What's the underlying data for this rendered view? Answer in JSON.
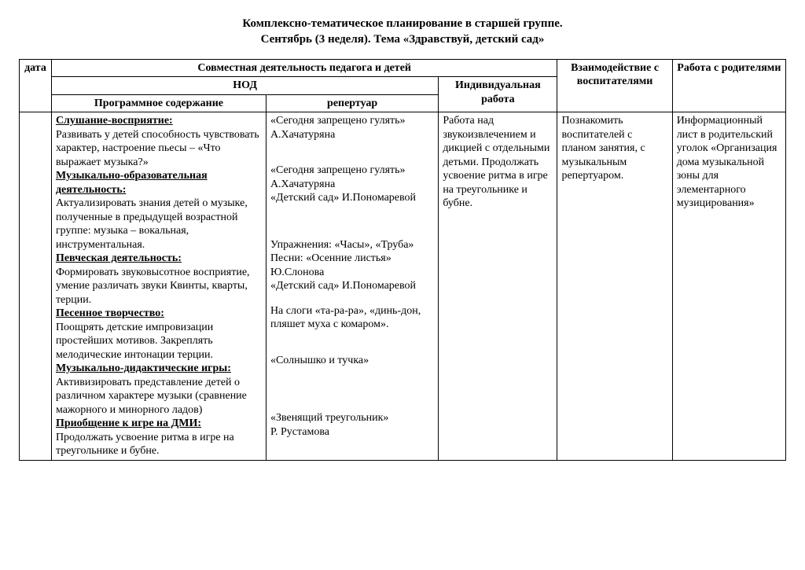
{
  "title": {
    "line1": "Комплексно-тематическое планирование в старшей группе.",
    "line2": "Сентябрь (3 неделя). Тема «Здравствуй, детский сад»"
  },
  "headers": {
    "date": "дата",
    "joint": "Совместная деятельность педагога и детей",
    "nod": "НОД",
    "indiv": "Индивидуальная работа",
    "educators": "Взаимодействие с воспитателями",
    "parents": "Работа с родителями",
    "programContent": "Программное содержание",
    "repertoire": "репертуар"
  },
  "sections": {
    "listening": {
      "label": "Слушание-восприятие:",
      "text": "Развивать у детей способность чувствовать характер, настроение пьесы – «Что выражает музыка?»"
    },
    "musEdu": {
      "label": "Музыкально-образовательная деятельность:",
      "text": "Актуализировать знания детей о музыке, полученные в предыдущей возрастной группе: музыка – вокальная, инструментальная."
    },
    "singing": {
      "label": "Певческая деятельность:",
      "text": "Формировать звуковысотное восприятие, умение различать звуки Квинты, кварты, терции."
    },
    "songCr": {
      "label": "Песенное творчество:",
      "text": "Поощрять детские импровизации простейших мотивов. Закреплять мелодические интонации терции."
    },
    "didactic": {
      "label": "Музыкально-дидактические игры:",
      "text": "Активизировать представление детей о различном характере музыки (сравнение мажорного и минорного ладов)"
    },
    "dmi": {
      "label": "Приобщение к игре на ДМИ:",
      "text": "Продолжать усвоение ритма в игре на треугольнике и бубне."
    }
  },
  "rep": {
    "r1a": "«Сегодня запрещено гулять»",
    "r1b": "А.Хачатуряна",
    "r2a": "«Сегодня запрещено гулять»",
    "r2b": "А.Хачатуряна",
    "r2c": "«Детский сад» И.Пономаревой",
    "r3a": "Упражнения: «Часы», «Труба»",
    "r3b": "Песни: «Осенние листья»",
    "r3c": "Ю.Слонова",
    "r3d": "«Детский сад» И.Пономаревой",
    "r4a": "На слоги «та-ра-ра», «динь-дон, пляшет муха с комаром».",
    "r5a": "«Солнышко и тучка»",
    "r6a": "«Звенящий треугольник»",
    "r6b": " Р. Рустамова"
  },
  "indiv": "Работа над звукоизвлечением и дикцией с отдельными детьми. Продолжать усвоение ритма в игре на треугольнике и бубне.",
  "educators": "Познакомить воспитателей с планом занятия, с музыкальным репертуаром.",
  "parents": "Информационный лист в родительский уголок «Организация дома музыкальной зоны для элементарного музицирования»"
}
